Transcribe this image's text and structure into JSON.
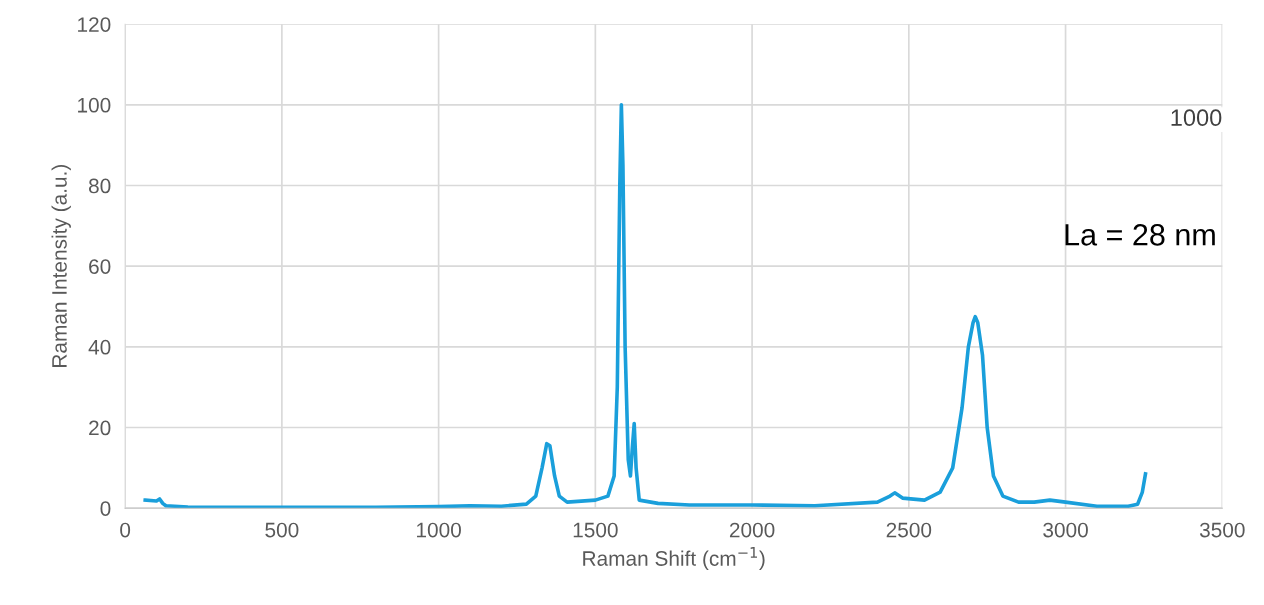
{
  "chart_data": {
    "type": "line",
    "xlabel": "Raman Shift (cm$^{−1}$)",
    "ylabel": "Raman Intensity (a.u.)",
    "x": [
      64,
      100,
      110,
      120,
      130,
      200,
      500,
      800,
      1000,
      1100,
      1200,
      1280,
      1310,
      1330,
      1345,
      1355,
      1370,
      1385,
      1410,
      1500,
      1540,
      1560,
      1570,
      1578,
      1583,
      1588,
      1595,
      1605,
      1612,
      1618,
      1624,
      1630,
      1640,
      1700,
      1800,
      2000,
      2200,
      2400,
      2440,
      2455,
      2480,
      2550,
      2600,
      2640,
      2670,
      2690,
      2705,
      2712,
      2720,
      2735,
      2750,
      2770,
      2800,
      2850,
      2900,
      2950,
      3000,
      3100,
      3200,
      3230,
      3245,
      3255
    ],
    "series": [
      {
        "color": "#1a9fdb",
        "values": [
          2,
          1.8,
          2.3,
          1.2,
          0.6,
          0.3,
          0.2,
          0.2,
          0.4,
          0.6,
          0.5,
          1,
          3,
          10,
          16,
          15.5,
          8,
          3,
          1.5,
          2,
          3,
          8,
          30,
          80,
          100,
          85,
          40,
          12,
          8,
          15,
          21,
          10,
          2,
          1.2,
          0.8,
          0.8,
          0.6,
          1.5,
          3,
          3.8,
          2.5,
          2,
          4,
          10,
          25,
          40,
          46,
          47.5,
          46,
          38,
          20,
          8,
          3,
          1.5,
          1.5,
          2,
          1.5,
          0.5,
          0.5,
          1,
          4,
          8.5
        ]
      }
    ],
    "xlim": [
      0,
      3500
    ],
    "xticks": [
      0,
      500,
      1000,
      1500,
      2000,
      2500,
      3000,
      3500
    ],
    "ylim": [
      0,
      120
    ],
    "yticks": [
      0,
      20,
      40,
      60,
      80,
      100,
      120
    ],
    "grid": true,
    "marker": "none",
    "line_style": "solid",
    "annotations": [
      "La = 28 nm",
      "1000"
    ]
  }
}
